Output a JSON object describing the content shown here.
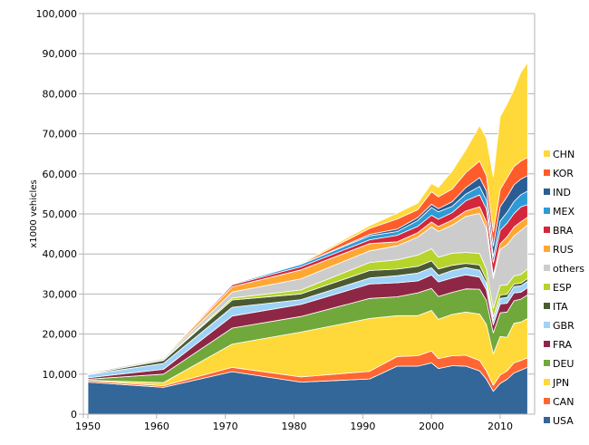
{
  "chart_data": {
    "type": "area",
    "stacked": true,
    "title": "",
    "xlabel": "",
    "ylabel": "x1000 vehicles",
    "xlim": [
      1950,
      2015
    ],
    "ylim": [
      0,
      100000
    ],
    "x_ticks": [
      1950,
      1960,
      1970,
      1980,
      1990,
      2000,
      2010
    ],
    "y_ticks": [
      0,
      10000,
      20000,
      30000,
      40000,
      50000,
      60000,
      70000,
      80000,
      90000,
      100000
    ],
    "y_tick_labels": [
      "0",
      "10,000",
      "20,000",
      "30,000",
      "40,000",
      "50,000",
      "60,000",
      "70,000",
      "80,000",
      "90,000",
      "100,000"
    ],
    "grid": "horizontal",
    "legend_placement": "right",
    "x": [
      1950,
      1961,
      1971,
      1981,
      1991,
      1995,
      1998,
      2000,
      2001,
      2003,
      2005,
      2007,
      2008,
      2009,
      2010,
      2011,
      2012,
      2013,
      2014
    ],
    "series": [
      {
        "name": "USA",
        "color": "#336699",
        "values": [
          8000,
          6700,
          10600,
          8000,
          8800,
          12000,
          12000,
          12800,
          11400,
          12100,
          12000,
          10800,
          8700,
          5700,
          7700,
          8700,
          10300,
          11000,
          11700
        ]
      },
      {
        "name": "CAN",
        "color": "#ff6633",
        "values": [
          400,
          400,
          1100,
          1300,
          1900,
          2400,
          2600,
          3000,
          2500,
          2500,
          2700,
          2600,
          2100,
          1500,
          2100,
          2100,
          2500,
          2400,
          2400
        ]
      },
      {
        "name": "JPN",
        "color": "#ffd83a",
        "values": [
          30,
          800,
          5800,
          11200,
          13200,
          10200,
          10000,
          10100,
          9800,
          10300,
          10800,
          11600,
          11600,
          7900,
          9600,
          8400,
          9900,
          9600,
          9800
        ]
      },
      {
        "name": "DEU",
        "color": "#70a83b",
        "values": [
          300,
          2100,
          4000,
          3900,
          5000,
          4700,
          5700,
          5500,
          5700,
          5500,
          5800,
          6200,
          6000,
          5200,
          5900,
          6300,
          5600,
          5700,
          5900
        ]
      },
      {
        "name": "FRA",
        "color": "#8e2746",
        "values": [
          350,
          1200,
          3000,
          3000,
          3600,
          3500,
          2950,
          3350,
          3600,
          3600,
          3500,
          3000,
          2600,
          2000,
          2200,
          2200,
          1970,
          1740,
          1800
        ]
      },
      {
        "name": "GBR",
        "color": "#9fd2f7",
        "values": [
          780,
          1460,
          2200,
          1200,
          1500,
          1770,
          1970,
          1800,
          1680,
          1850,
          1800,
          1750,
          1650,
          1100,
          1400,
          1460,
          1580,
          1600,
          1600
        ]
      },
      {
        "name": "ITA",
        "color": "#4b5a32",
        "values": [
          130,
          760,
          1800,
          1430,
          1870,
          1660,
          1690,
          1740,
          1580,
          1320,
          1040,
          1280,
          1020,
          840,
          840,
          790,
          670,
          660,
          700
        ]
      },
      {
        "name": "ESP",
        "color": "#b6d42c",
        "values": [
          0,
          80,
          500,
          980,
          2000,
          2300,
          2800,
          3000,
          2900,
          3000,
          2750,
          2900,
          2540,
          2170,
          2390,
          2350,
          1980,
          2160,
          2400
        ]
      },
      {
        "name": "others",
        "color": "#cccccc",
        "values": [
          300,
          400,
          1500,
          2800,
          2900,
          3500,
          4500,
          5500,
          6500,
          7000,
          9000,
          10000,
          10000,
          7500,
          9000,
          10000,
          10000,
          11000,
          11000
        ]
      },
      {
        "name": "RUS",
        "color": "#ffa733",
        "values": [
          0,
          200,
          1300,
          2200,
          1800,
          1000,
          1100,
          1200,
          1200,
          1300,
          1350,
          1660,
          1790,
          720,
          1400,
          1990,
          2230,
          2180,
          1890
        ]
      },
      {
        "name": "BRA",
        "color": "#d4273b",
        "values": [
          0,
          100,
          500,
          800,
          960,
          1630,
          1580,
          1680,
          1800,
          1830,
          2530,
          2970,
          3200,
          3180,
          3380,
          3410,
          3340,
          3710,
          3150
        ]
      },
      {
        "name": "MEX",
        "color": "#2e9bd6",
        "values": [
          0,
          0,
          200,
          600,
          990,
          930,
          1450,
          1930,
          1840,
          1570,
          1680,
          2090,
          2190,
          1560,
          2340,
          2680,
          3000,
          3050,
          3370
        ]
      },
      {
        "name": "IND",
        "color": "#2a5d94",
        "values": [
          0,
          0,
          0,
          0,
          360,
          640,
          750,
          800,
          810,
          1160,
          1640,
          2250,
          2330,
          2630,
          3540,
          3930,
          4170,
          3880,
          3840
        ]
      },
      {
        "name": "KOR",
        "color": "#ff5c2b",
        "values": [
          0,
          0,
          0,
          130,
          1500,
          2500,
          1950,
          3120,
          2950,
          3180,
          3700,
          4090,
          3830,
          3510,
          4270,
          4660,
          4560,
          4520,
          4520
        ]
      },
      {
        "name": "CHN",
        "color": "#ffd83a",
        "values": [
          0,
          0,
          100,
          200,
          700,
          1450,
          1630,
          2070,
          2340,
          4440,
          5710,
          8880,
          9300,
          13790,
          18260,
          18420,
          19270,
          22120,
          23720
        ]
      }
    ]
  }
}
